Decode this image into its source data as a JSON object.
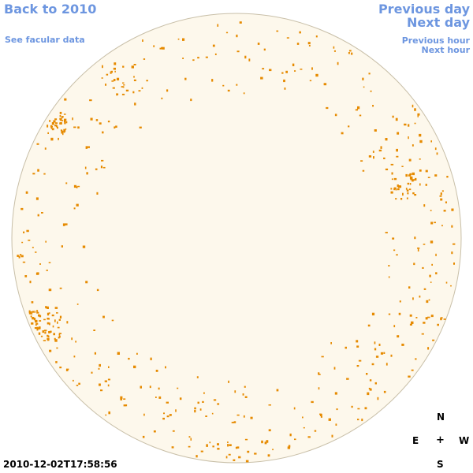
{
  "nav": {
    "back": "Back to 2010",
    "facular": "See facular data",
    "previous_day": "Previous day",
    "next_day": "Next day",
    "previous_hour": "Previous hour",
    "next_hour": "Next hour"
  },
  "compass": {
    "north": "N",
    "east": "E",
    "center": "+",
    "west": "W",
    "south": "S"
  },
  "timestamp": "2010-12-02T17:58:56",
  "colors": {
    "link": "#6d96e0",
    "disk_fill": "#fdf8ec",
    "disk_edge": "#c8bfa8",
    "facula": "#e68a00"
  }
}
